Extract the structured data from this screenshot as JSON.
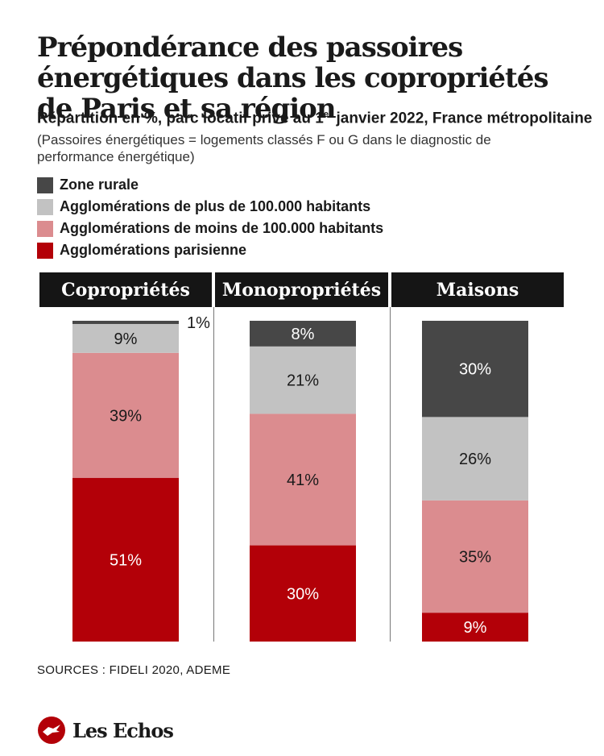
{
  "title": "Prépondérance des passoires énergétiques dans les copropriétés de Paris et sa région",
  "subtitle_main": "Répartition en %, parc locatif privé au 1",
  "subtitle_sup": "er",
  "subtitle_tail": " janvier 2022, France métropolitaine",
  "note": "(Passoires énergétiques = logements classés F ou G dans le diagnostic de performance énergétique)",
  "sources": "SOURCES : FIDELI 2020, ADEME",
  "logo": {
    "text": "Les Echos"
  },
  "colors": {
    "zone_rurale": "#474747",
    "plus_100000": "#c2c2c2",
    "moins_100000": "#db8c8f",
    "parisienne": "#b30008",
    "header_bg": "#151515"
  },
  "legend": [
    {
      "label": "Zone rurale",
      "color": "#474747"
    },
    {
      "label": "Agglomérations de plus de 100.000 habitants",
      "color": "#c2c2c2"
    },
    {
      "label": "Agglomérations de moins de 100.000 habitants",
      "color": "#db8c8f"
    },
    {
      "label": "Agglomérations parisienne",
      "color": "#b30008"
    }
  ],
  "chart_data": {
    "type": "bar",
    "stacked": true,
    "normalized_percent": true,
    "categories": [
      "Copropriétés",
      "Monopropriétés",
      "Maisons"
    ],
    "series": [
      {
        "name": "Agglomérations parisienne",
        "color": "#b30008",
        "values": [
          51,
          30,
          9
        ],
        "labels": [
          "51%",
          "30%",
          "9%"
        ]
      },
      {
        "name": "Agglomérations de moins de 100.000 habitants",
        "color": "#db8c8f",
        "values": [
          39,
          41,
          35
        ],
        "labels": [
          "39%",
          "41%",
          "35%"
        ]
      },
      {
        "name": "Agglomérations de plus de 100.000 habitants",
        "color": "#c2c2c2",
        "values": [
          9,
          21,
          26
        ],
        "labels": [
          "9%",
          "21%",
          "26%"
        ]
      },
      {
        "name": "Zone rurale",
        "color": "#474747",
        "values": [
          1,
          8,
          30
        ],
        "labels": [
          "1%",
          "8%",
          "30%"
        ]
      }
    ],
    "ylim": [
      0,
      100
    ],
    "grid": false,
    "legend_position": "top-left"
  }
}
